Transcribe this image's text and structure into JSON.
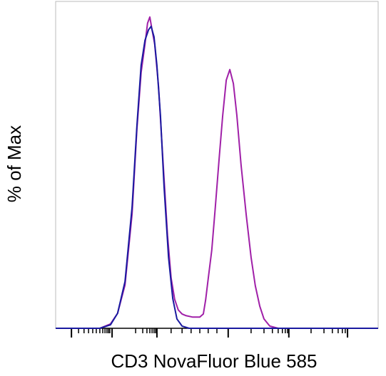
{
  "chart_data": {
    "type": "line",
    "xlabel": "CD3 NovaFluor Blue 585",
    "ylabel": "% of Max",
    "xlim": [
      0,
      1000
    ],
    "ylim": [
      0,
      105
    ],
    "xticks": [
      49,
      175,
      314,
      535,
      723,
      905
    ],
    "xminorticks": [
      71,
      88,
      102,
      115,
      126,
      137,
      146,
      153,
      159,
      164,
      168,
      248,
      270,
      283,
      292,
      299,
      305,
      310,
      358,
      392,
      420,
      447,
      473,
      500,
      606,
      646,
      672,
      690,
      703,
      712,
      719,
      792,
      832,
      858,
      876,
      889,
      898
    ],
    "series": [
      {
        "color": "#a020a8",
        "x": [
          0,
          137,
          170,
          192,
          215,
          237,
          252,
          265,
          277,
          285,
          292,
          299,
          307,
          319,
          332,
          347,
          358,
          369,
          380,
          392,
          403,
          425,
          447,
          458,
          465,
          473,
          484,
          495,
          507,
          518,
          529,
          540,
          551,
          562,
          575,
          591,
          606,
          619,
          633,
          646,
          664,
          690,
          1000
        ],
        "values": [
          0,
          0,
          1.4,
          4.8,
          13.9,
          36.7,
          64.0,
          82.2,
          91.3,
          98.0,
          100,
          95.9,
          91.3,
          77.7,
          55.0,
          29.8,
          16.2,
          9.3,
          5.9,
          4.6,
          4.1,
          3.6,
          3.6,
          4.6,
          9.1,
          15.9,
          25.1,
          38.7,
          54.7,
          68.3,
          79.7,
          83.1,
          78.6,
          68.3,
          52.4,
          36.4,
          22.8,
          13.7,
          7.1,
          3.0,
          0.7,
          0,
          0
        ]
      },
      {
        "color": "#1a1aa0",
        "x": [
          0,
          137,
          170,
          192,
          215,
          237,
          252,
          265,
          277,
          288,
          296,
          305,
          314,
          325,
          336,
          350,
          363,
          376,
          392,
          414,
          1000
        ],
        "values": [
          0,
          0,
          1.1,
          4.8,
          15.0,
          38.9,
          65.1,
          84.5,
          92.5,
          95.9,
          97.0,
          93.6,
          84.5,
          68.3,
          45.6,
          22.8,
          9.6,
          3.0,
          0.7,
          0,
          0
        ]
      }
    ]
  }
}
